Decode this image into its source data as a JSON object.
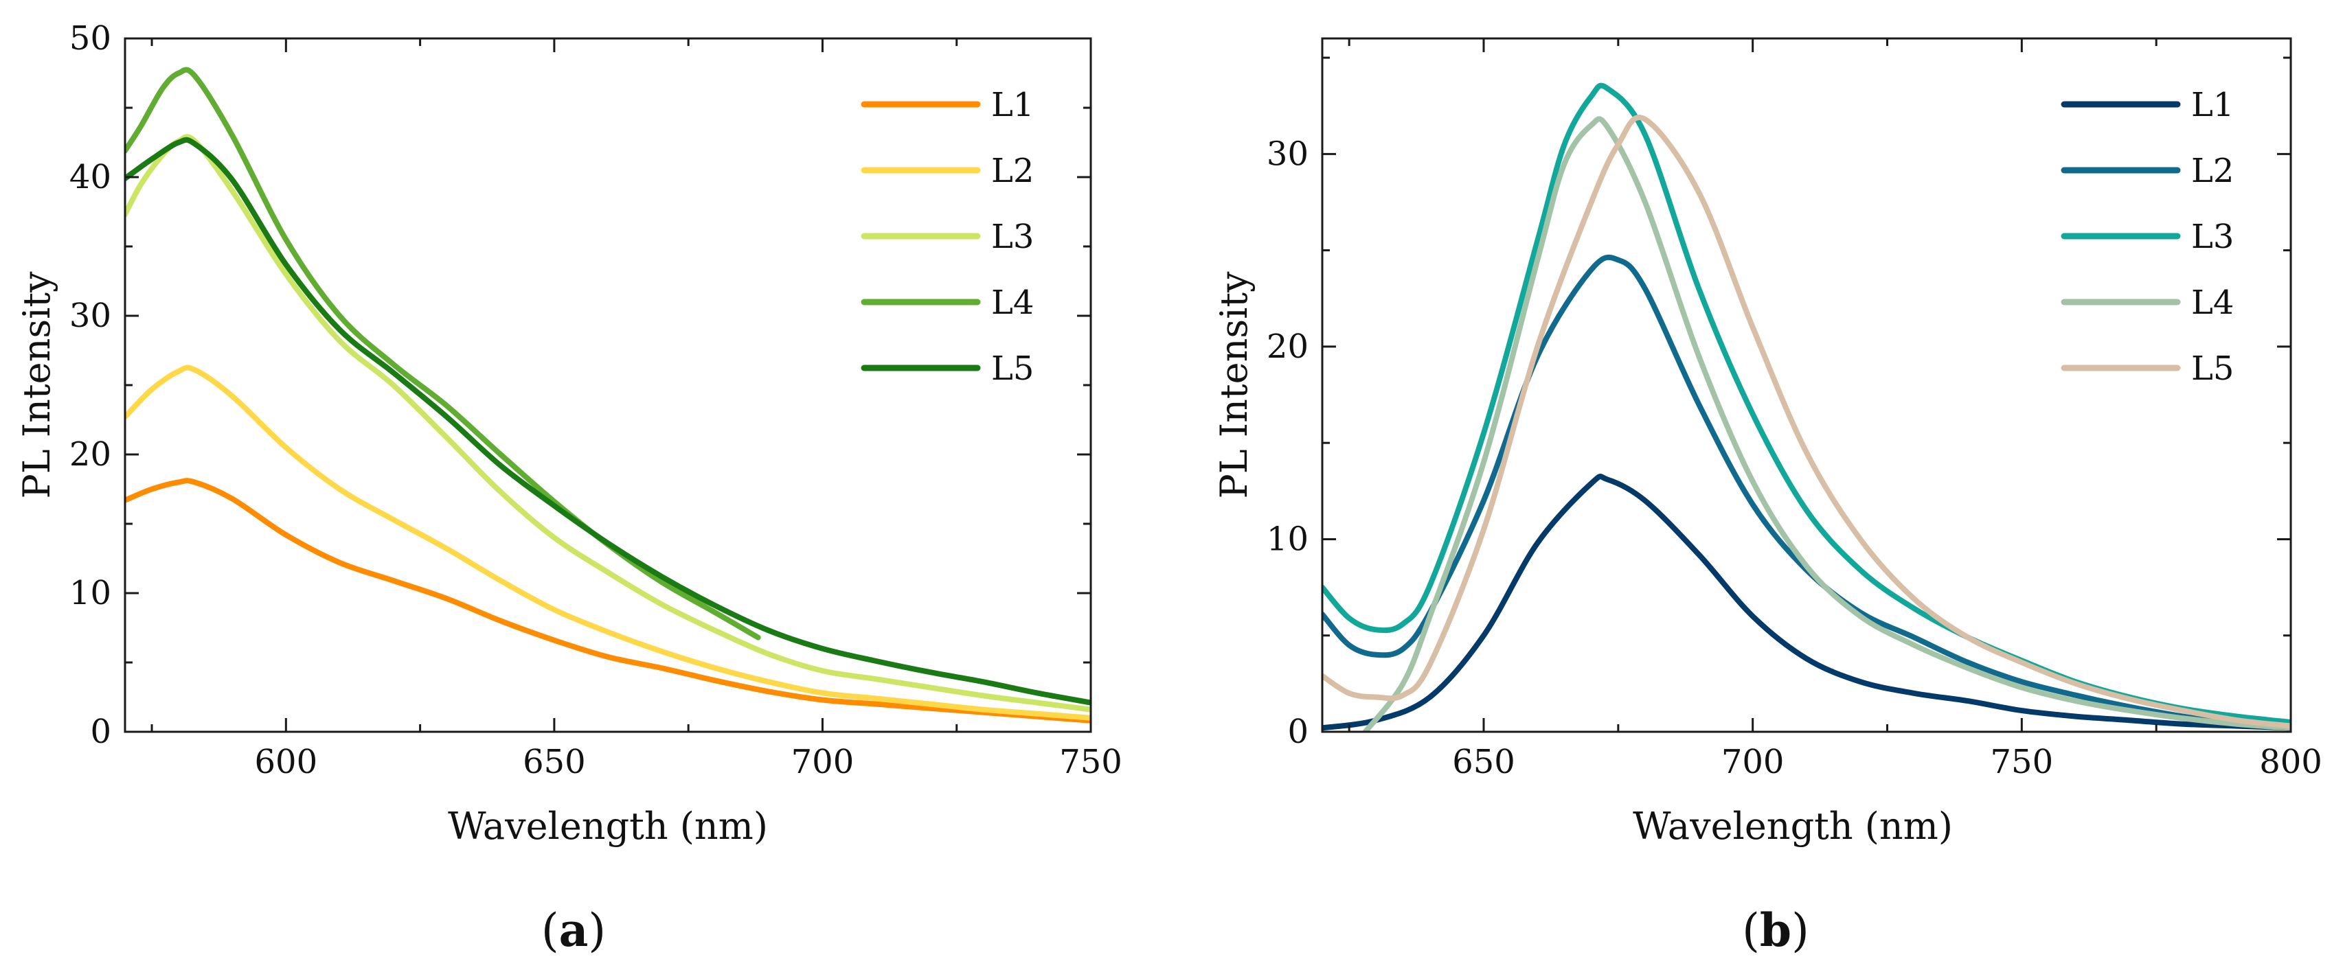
{
  "chart_data": [
    {
      "type": "line",
      "panel_label": "a",
      "title": "",
      "xlabel": "Wavelength (nm)",
      "ylabel": "PL Intensity",
      "xlim": [
        570,
        750
      ],
      "ylim": [
        0,
        50
      ],
      "xticks": [
        600,
        650,
        700,
        750
      ],
      "yticks": [
        0,
        10,
        20,
        30,
        40,
        50
      ],
      "grid": false,
      "legend_position": "top-right",
      "series": [
        {
          "name": "L1",
          "color": "#ff8c00",
          "x": [
            570,
            575,
            580,
            583,
            590,
            600,
            610,
            620,
            630,
            640,
            650,
            660,
            670,
            680,
            690,
            700,
            710,
            720,
            730,
            740,
            750
          ],
          "y": [
            16.7,
            17.5,
            18.0,
            18.0,
            16.8,
            14.2,
            12.2,
            10.9,
            9.6,
            8.0,
            6.6,
            5.4,
            4.6,
            3.7,
            2.9,
            2.3,
            2.0,
            1.7,
            1.4,
            1.1,
            0.8
          ]
        },
        {
          "name": "L2",
          "color": "#ffd84a",
          "x": [
            570,
            575,
            580,
            583,
            590,
            600,
            610,
            620,
            630,
            640,
            650,
            660,
            670,
            680,
            690,
            700,
            710,
            720,
            730,
            740,
            750
          ],
          "y": [
            22.7,
            24.7,
            26.0,
            26.1,
            24.2,
            20.5,
            17.5,
            15.3,
            13.2,
            10.9,
            8.8,
            7.2,
            5.8,
            4.6,
            3.6,
            2.8,
            2.4,
            2.0,
            1.6,
            1.3,
            1.0
          ]
        },
        {
          "name": "L3",
          "color": "#cde564",
          "x": [
            570,
            573,
            577,
            580,
            583,
            590,
            600,
            610,
            620,
            630,
            640,
            650,
            660,
            670,
            680,
            690,
            700,
            710,
            720,
            730,
            740,
            750
          ],
          "y": [
            37.3,
            39.5,
            41.6,
            42.6,
            42.6,
            39.0,
            33.0,
            28.2,
            25.0,
            21.2,
            17.3,
            14.0,
            11.5,
            9.2,
            7.3,
            5.6,
            4.4,
            3.8,
            3.2,
            2.6,
            2.1,
            1.6
          ]
        },
        {
          "name": "L4",
          "color": "#60ad32",
          "x": [
            570,
            573,
            577,
            580,
            583,
            590,
            600,
            610,
            620,
            630,
            640,
            650,
            660,
            670,
            680,
            688
          ],
          "y": [
            41.9,
            43.7,
            46.4,
            47.5,
            47.3,
            43.0,
            35.5,
            30.0,
            26.5,
            23.5,
            20.0,
            16.6,
            13.5,
            10.8,
            8.6,
            6.8
          ]
        },
        {
          "name": "L5",
          "color": "#1a7a14",
          "x": [
            570,
            575,
            580,
            583,
            590,
            600,
            610,
            620,
            630,
            640,
            650,
            660,
            670,
            680,
            690,
            700,
            710,
            720,
            730,
            740,
            750
          ],
          "y": [
            39.9,
            41.3,
            42.5,
            42.4,
            39.8,
            33.7,
            29.0,
            25.9,
            22.7,
            19.2,
            16.3,
            13.6,
            11.2,
            9.1,
            7.3,
            6.0,
            5.1,
            4.3,
            3.6,
            2.8,
            2.1
          ]
        }
      ]
    },
    {
      "type": "line",
      "panel_label": "b",
      "title": "",
      "xlabel": "Wavelength (nm)",
      "ylabel": "PL Intensity",
      "xlim": [
        620,
        800
      ],
      "ylim": [
        0,
        36
      ],
      "xticks": [
        650,
        700,
        750,
        800
      ],
      "yticks": [
        0,
        10,
        20,
        30
      ],
      "grid": false,
      "legend_position": "top-right",
      "series": [
        {
          "name": "L1",
          "color": "#033a6a",
          "x": [
            620,
            630,
            640,
            650,
            660,
            670,
            673,
            680,
            690,
            700,
            710,
            720,
            730,
            740,
            750,
            760,
            770,
            780,
            790,
            800
          ],
          "y": [
            0.2,
            0.6,
            1.8,
            5.0,
            9.8,
            12.9,
            13.1,
            12.0,
            9.2,
            6.0,
            3.8,
            2.6,
            2.0,
            1.6,
            1.1,
            0.8,
            0.6,
            0.4,
            0.3,
            0.2
          ]
        },
        {
          "name": "L2",
          "color": "#0f6a8e",
          "x": [
            620,
            625,
            630,
            635,
            640,
            650,
            660,
            670,
            675,
            680,
            690,
            700,
            710,
            720,
            730,
            740,
            750,
            760,
            770,
            780,
            790,
            800
          ],
          "y": [
            6.1,
            4.5,
            4.0,
            4.3,
            6.2,
            12.0,
            19.5,
            24.0,
            24.5,
            23.0,
            17.0,
            11.8,
            8.4,
            6.2,
            4.9,
            3.6,
            2.6,
            1.9,
            1.3,
            0.8,
            0.4,
            0.2
          ]
        },
        {
          "name": "L3",
          "color": "#11a89b",
          "x": [
            620,
            625,
            630,
            635,
            640,
            650,
            660,
            665,
            670,
            673,
            680,
            690,
            700,
            710,
            720,
            730,
            740,
            750,
            760,
            770,
            780,
            790,
            800
          ],
          "y": [
            7.5,
            5.9,
            5.3,
            5.6,
            7.6,
            15.5,
            25.5,
            30.5,
            33.0,
            33.4,
            31.0,
            23.0,
            16.5,
            11.5,
            8.4,
            6.4,
            4.9,
            3.7,
            2.6,
            1.8,
            1.2,
            0.8,
            0.5
          ]
        },
        {
          "name": "L4",
          "color": "#a3c3a7",
          "x": [
            628,
            635,
            640,
            650,
            660,
            665,
            670,
            673,
            680,
            690,
            700,
            710,
            720,
            730,
            740,
            750,
            760,
            770,
            780,
            790,
            800
          ],
          "y": [
            0.0,
            2.5,
            6.0,
            14.0,
            24.5,
            29.5,
            31.5,
            31.4,
            27.5,
            19.5,
            13.0,
            8.6,
            6.0,
            4.5,
            3.3,
            2.3,
            1.6,
            1.1,
            0.7,
            0.4,
            0.2
          ]
        },
        {
          "name": "L5",
          "color": "#d8bea4",
          "x": [
            620,
            625,
            630,
            635,
            640,
            650,
            660,
            670,
            675,
            680,
            690,
            700,
            710,
            720,
            730,
            740,
            750,
            760,
            770,
            780,
            790,
            800
          ],
          "y": [
            2.9,
            2.0,
            1.8,
            1.9,
            3.5,
            10.5,
            20.0,
            27.5,
            30.5,
            31.8,
            28.0,
            21.0,
            14.5,
            10.0,
            6.9,
            4.9,
            3.6,
            2.5,
            1.7,
            1.1,
            0.6,
            0.3
          ]
        }
      ]
    }
  ]
}
